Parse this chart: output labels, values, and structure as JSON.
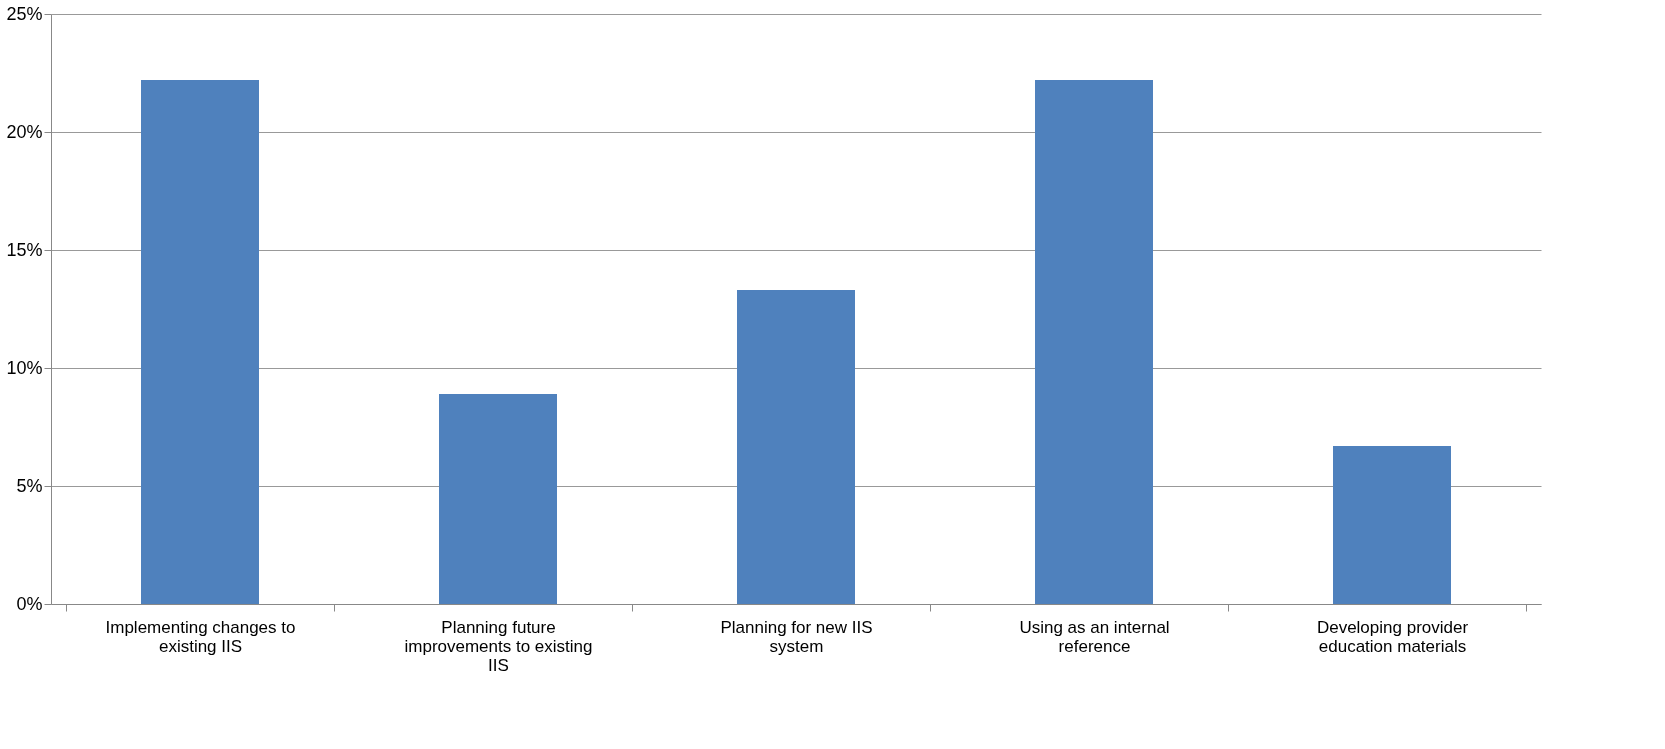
{
  "chart_data": {
    "type": "bar",
    "categories": [
      "Implementing changes to existing IIS",
      "Planning future improvements to existing IIS",
      "Planning for new IIS system",
      "Using as an internal reference",
      "Developing provider education materials"
    ],
    "values": [
      22.2,
      8.9,
      13.3,
      22.2,
      6.7
    ],
    "color": "#4f81bd",
    "ylim": [
      0,
      25
    ],
    "yticks": [
      {
        "value": 0,
        "label": "0%"
      },
      {
        "value": 5,
        "label": "5%"
      },
      {
        "value": 10,
        "label": "10%"
      },
      {
        "value": 15,
        "label": "15%"
      },
      {
        "value": 20,
        "label": "20%"
      },
      {
        "value": 25,
        "label": "25%"
      }
    ],
    "grid": "y"
  }
}
